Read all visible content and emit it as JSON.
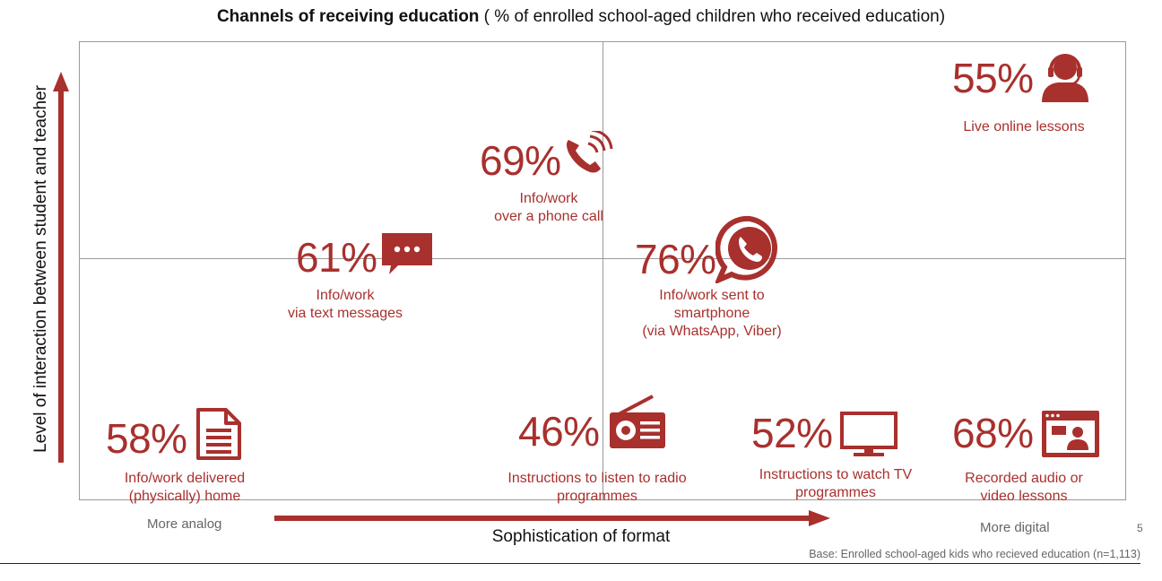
{
  "title": {
    "bold": "Channels of receiving education",
    "rest": " ( % of enrolled school-aged children who received education)"
  },
  "axes": {
    "y_label": "Level of interaction between student and teacher",
    "x_label": "Sophistication of format",
    "x_start": "More analog",
    "x_end": "More digital"
  },
  "footnote": "Base: Enrolled school-aged kids who recieved education (n=1,113)",
  "page_number": "5",
  "colors": {
    "accent": "#a8302d",
    "grid": "#9a9a9a",
    "muted": "#666666"
  },
  "channels": [
    {
      "value": "55%",
      "label_lines": [
        "Live online lessons"
      ],
      "icon": "headset-user-icon"
    },
    {
      "value": "69%",
      "label_lines": [
        "Info/work",
        "over a phone call"
      ],
      "icon": "phone-call-icon"
    },
    {
      "value": "61%",
      "label_lines": [
        "Info/work",
        "via text messages"
      ],
      "icon": "chat-bubble-icon"
    },
    {
      "value": "76%",
      "label_lines": [
        "Info/work sent to",
        "smartphone",
        "(via WhatsApp, Viber)"
      ],
      "icon": "whatsapp-icon"
    },
    {
      "value": "58%",
      "label_lines": [
        "Info/work delivered",
        "(physically) home"
      ],
      "icon": "document-icon"
    },
    {
      "value": "46%",
      "label_lines": [
        "Instructions to listen to radio",
        "programmes"
      ],
      "icon": "radio-icon"
    },
    {
      "value": "52%",
      "label_lines": [
        "Instructions to watch TV",
        "programmes"
      ],
      "icon": "tv-icon"
    },
    {
      "value": "68%",
      "label_lines": [
        "Recorded audio or",
        "video lessons"
      ],
      "icon": "video-lesson-icon"
    }
  ]
}
